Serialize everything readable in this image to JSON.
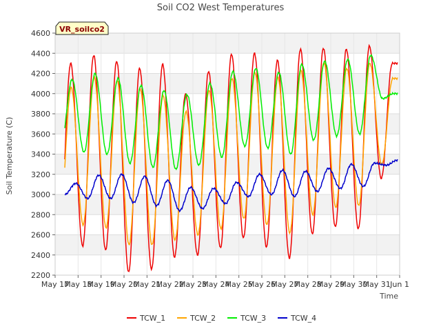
{
  "chart_data": {
    "type": "line",
    "title": "Soil CO2 West Temperatures",
    "xlabel": "Time",
    "ylabel": "Soil Temperature (C)",
    "badge": "VR_soilco2",
    "ylim": [
      2200,
      4600
    ],
    "y_ticks": [
      2200,
      2400,
      2600,
      2800,
      3000,
      3200,
      3400,
      3600,
      3800,
      4000,
      4200,
      4400,
      4600
    ],
    "xlim": [
      "2024-05-17",
      "2024-06-01"
    ],
    "x_tick_labels": [
      "May 17",
      "May 18",
      "May 19",
      "May 20",
      "May 21",
      "May 22",
      "May 23",
      "May 24",
      "May 25",
      "May 26",
      "May 27",
      "May 28",
      "May 29",
      "May 30",
      "May 31",
      "Jun 1"
    ],
    "grid": true,
    "legend_position": "bottom",
    "x": [
      "2024-05-17",
      "2024-05-18",
      "2024-05-19",
      "2024-05-20",
      "2024-05-21",
      "2024-05-22",
      "2024-05-23",
      "2024-05-24",
      "2024-05-25",
      "2024-05-26",
      "2024-05-27",
      "2024-05-28",
      "2024-05-29",
      "2024-05-30",
      "2024-05-31"
    ],
    "series": [
      {
        "name": "TCW_1",
        "color": "#ee0000",
        "daily_max": [
          4300,
          4380,
          4320,
          4250,
          4290,
          4000,
          4220,
          4390,
          4400,
          4330,
          4440,
          4450,
          4440,
          4470,
          4300
        ],
        "daily_min": [
          2620,
          2490,
          2450,
          2230,
          2260,
          2380,
          2400,
          2470,
          2570,
          2480,
          2370,
          2610,
          2680,
          2660,
          3160
        ]
      },
      {
        "name": "TCW_2",
        "color": "#ffa500",
        "daily_max": [
          4060,
          4160,
          4130,
          4050,
          3980,
          3820,
          4030,
          4150,
          4210,
          4160,
          4230,
          4310,
          4250,
          4300,
          4150
        ],
        "daily_min": [
          2800,
          2700,
          2670,
          2500,
          2500,
          2550,
          2600,
          2660,
          2760,
          2700,
          2620,
          2800,
          2870,
          2890,
          3300
        ]
      },
      {
        "name": "TCW_3",
        "color": "#00ee00",
        "daily_max": [
          4140,
          4200,
          4150,
          4080,
          4030,
          3990,
          4100,
          4220,
          4250,
          4210,
          4290,
          4320,
          4340,
          4380,
          4000
        ],
        "daily_min": [
          3500,
          3420,
          3400,
          3310,
          3270,
          3250,
          3290,
          3370,
          3480,
          3460,
          3400,
          3540,
          3580,
          3600,
          3950
        ]
      },
      {
        "name": "TCW_4",
        "color": "#0000cc",
        "daily_max": [
          3110,
          3190,
          3200,
          3180,
          3140,
          3070,
          3060,
          3120,
          3200,
          3240,
          3230,
          3260,
          3300,
          3310,
          3340
        ],
        "daily_min": [
          3000,
          2960,
          2960,
          2920,
          2890,
          2840,
          2860,
          2910,
          2980,
          3000,
          2980,
          3030,
          3060,
          3080,
          3290
        ]
      }
    ]
  }
}
